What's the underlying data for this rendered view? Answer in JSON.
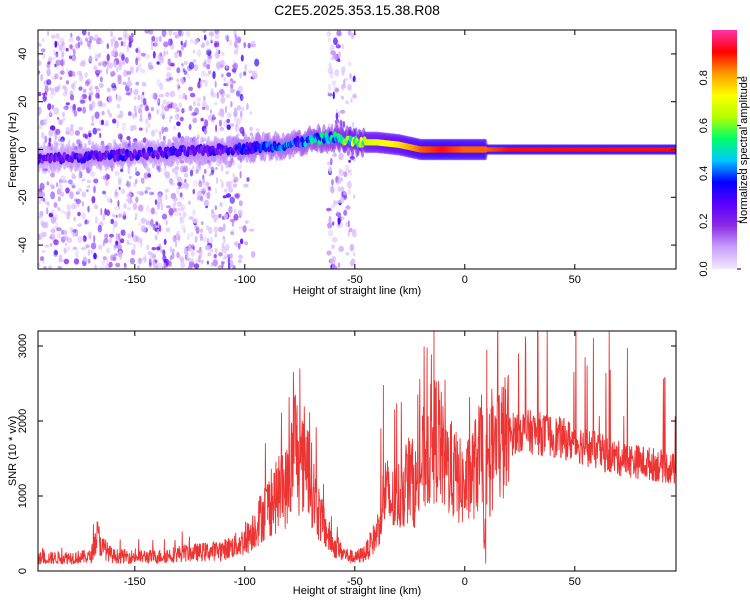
{
  "chart_data": [
    {
      "type": "heatmap",
      "title": "C2E5.2025.353.15.38.R08",
      "xlabel": "Height of straight line (km)",
      "ylabel": "Frequency (Hz)",
      "xlim": [
        -194,
        96
      ],
      "ylim": [
        -50,
        50
      ],
      "xticks": [
        -150,
        -100,
        -50,
        0,
        50
      ],
      "xtick_labels": [
        "-150",
        "-100",
        "-50",
        "0",
        "50"
      ],
      "yticks": [
        -40,
        -20,
        0,
        20,
        40
      ],
      "ytick_labels": [
        "-40",
        "-20",
        "0",
        "20",
        "40"
      ],
      "colorbar": {
        "label": "Normalized spectral amplitude",
        "range": [
          0,
          1
        ],
        "ticks": [
          0.0,
          0.2,
          0.4,
          0.6,
          0.8
        ],
        "tick_labels": [
          "0.0",
          "0.2",
          "0.4",
          "0.6",
          "0.8"
        ],
        "colors": [
          "#f3e8ff",
          "#c9a0ff",
          "#8a2be2",
          "#5a00ff",
          "#0000ff",
          "#00c8ff",
          "#00ff66",
          "#b4ff00",
          "#ffff00",
          "#ff9900",
          "#ff0000",
          "#ff33aa"
        ]
      },
      "ridge": {
        "x": [
          -194,
          -170,
          -150,
          -130,
          -110,
          -100,
          -80,
          -70,
          -60,
          -50,
          -40,
          -30,
          -20,
          -10,
          0,
          10,
          20,
          40,
          60,
          80,
          96
        ],
        "freq": [
          -4,
          -3,
          -2,
          -1,
          0,
          0.5,
          2,
          4,
          5,
          3,
          3,
          2,
          0,
          0,
          0,
          0,
          0,
          0,
          0,
          0,
          0
        ],
        "amplitude": [
          0.25,
          0.3,
          0.3,
          0.3,
          0.3,
          0.35,
          0.4,
          0.45,
          0.5,
          0.65,
          0.7,
          0.75,
          0.85,
          0.9,
          0.85,
          0.85,
          0.9,
          0.9,
          0.9,
          0.9,
          0.9
        ]
      }
    },
    {
      "type": "line",
      "xlabel": "Height of straight line (km)",
      "ylabel": "SNR (10 * v/v)",
      "xlim": [
        -194,
        96
      ],
      "ylim": [
        0,
        3200
      ],
      "xticks": [
        -150,
        -100,
        -50,
        0,
        50
      ],
      "xtick_labels": [
        "-150",
        "-100",
        "-50",
        "0",
        "50"
      ],
      "yticks": [
        0,
        1000,
        2000,
        3000
      ],
      "ytick_labels": [
        "0",
        "1000",
        "2000",
        "3000"
      ],
      "color": "#ee3333",
      "series": [
        {
          "name": "SNR",
          "x": [
            -194,
            -180,
            -170,
            -167,
            -165,
            -160,
            -150,
            -140,
            -130,
            -120,
            -110,
            -105,
            -100,
            -95,
            -90,
            -85,
            -80,
            -77,
            -75,
            -72,
            -70,
            -68,
            -65,
            -60,
            -55,
            -50,
            -45,
            -40,
            -38,
            -36,
            -34,
            -30,
            -25,
            -22,
            -20,
            -15,
            -12,
            -10,
            -5,
            0,
            5,
            8,
            9,
            10,
            12,
            15,
            20,
            25,
            30,
            40,
            50,
            60,
            70,
            80,
            90,
            96
          ],
          "y": [
            170,
            180,
            190,
            480,
            320,
            200,
            190,
            190,
            230,
            250,
            280,
            330,
            400,
            600,
            850,
            1000,
            1150,
            1800,
            1300,
            1600,
            1200,
            950,
            650,
            350,
            230,
            170,
            250,
            500,
            800,
            1100,
            900,
            1000,
            1250,
            1100,
            1400,
            1700,
            1800,
            1500,
            1300,
            1100,
            1400,
            1600,
            300,
            1000,
            1500,
            1700,
            1800,
            1880,
            1850,
            1800,
            1720,
            1600,
            1500,
            1450,
            1400,
            1350
          ],
          "spikes": [
            {
              "x": -75,
              "y": 2700
            },
            {
              "x": -37,
              "y": 2480
            },
            {
              "x": -14,
              "y": 3200
            },
            {
              "x": -9,
              "y": 2550
            },
            {
              "x": 10,
              "y": 2950
            },
            {
              "x": 9.5,
              "y": 100
            }
          ]
        }
      ]
    }
  ]
}
